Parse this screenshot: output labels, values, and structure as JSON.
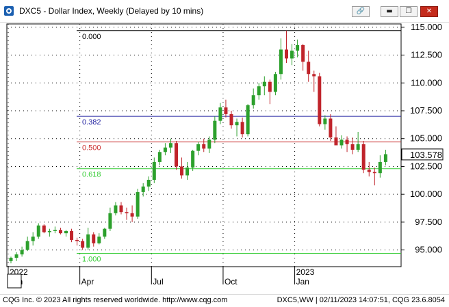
{
  "window": {
    "title": "DXC5 - Dollar Index, Weekly (Delayed by 10 mins)",
    "buttons": {
      "link": "🔗",
      "minimize": "▬",
      "restore": "❐",
      "close": "✕"
    }
  },
  "status_bar": {
    "left": "CQG Inc. © 2023 All rights reserved worldwide. http://www.cqg.com",
    "right": "DXC5,WW | 02/11/2023 14:07:51, CQG 23.6.8054"
  },
  "last_price": "103.578",
  "colors": {
    "up": "#2ca02c",
    "down": "#c0242b",
    "fib_0": "#000000",
    "fib_382": "#2020a0",
    "fib_500": "#cc3333",
    "fib_618": "#33cc33",
    "fib_100": "#33cc33",
    "price_tag_bg": "#ffffff"
  },
  "chart_data": {
    "type": "candlestick",
    "y_axis": {
      "min": 93.5,
      "max": 115.3,
      "ticks": [
        "115.000",
        "112.500",
        "110.000",
        "107.500",
        "105.000",
        "102.500",
        "100.000",
        "97.500",
        "95.000"
      ]
    },
    "x_axis_labels": [
      {
        "label": "2022",
        "week": 0,
        "sub": "Jan"
      },
      {
        "label": "Apr",
        "week": 13
      },
      {
        "label": "Jul",
        "week": 26
      },
      {
        "label": "Oct",
        "week": 39
      },
      {
        "label": "2023",
        "week": 52,
        "sub": "Jan"
      }
    ],
    "fibonacci": [
      {
        "label": "0.000",
        "value": 114.7,
        "start_week": 0
      },
      {
        "label": "0.382",
        "value": 107.0,
        "start_week": 0
      },
      {
        "label": "0.500",
        "value": 104.7,
        "start_week": 0
      },
      {
        "label": "0.618",
        "value": 102.3,
        "start_week": 0
      },
      {
        "label": "1.000",
        "value": 94.7,
        "start_week": 0
      }
    ],
    "candles": [
      [
        94.0,
        94.4,
        93.8,
        94.3
      ],
      [
        94.3,
        94.8,
        94.0,
        94.6
      ],
      [
        94.6,
        95.3,
        94.4,
        95.0
      ],
      [
        95.0,
        96.2,
        94.9,
        95.8
      ],
      [
        95.8,
        96.6,
        95.4,
        96.2
      ],
      [
        96.2,
        97.4,
        96.0,
        97.2
      ],
      [
        97.2,
        97.3,
        96.5,
        96.6
      ],
      [
        96.6,
        96.9,
        96.2,
        96.7
      ],
      [
        96.7,
        97.1,
        96.5,
        96.8
      ],
      [
        96.8,
        97.0,
        96.4,
        96.5
      ],
      [
        96.5,
        96.8,
        96.2,
        96.7
      ],
      [
        96.7,
        96.9,
        95.7,
        95.9
      ],
      [
        95.9,
        96.1,
        95.4,
        95.8
      ],
      [
        95.8,
        96.0,
        95.0,
        95.2
      ],
      [
        95.2,
        97.0,
        95.0,
        96.4
      ],
      [
        96.4,
        96.6,
        95.3,
        95.6
      ],
      [
        95.6,
        96.5,
        95.5,
        96.2
      ],
      [
        96.2,
        97.0,
        96.0,
        96.9
      ],
      [
        96.9,
        98.8,
        96.7,
        98.3
      ],
      [
        98.3,
        99.3,
        98.1,
        99.0
      ],
      [
        99.0,
        99.3,
        98.2,
        98.4
      ],
      [
        98.4,
        98.8,
        97.7,
        98.3
      ],
      [
        98.3,
        99.0,
        97.5,
        98.0
      ],
      [
        98.0,
        100.5,
        97.8,
        100.2
      ],
      [
        100.2,
        101.0,
        99.8,
        100.7
      ],
      [
        100.7,
        101.6,
        100.3,
        101.3
      ],
      [
        101.3,
        103.3,
        101.0,
        102.9
      ],
      [
        102.9,
        104.0,
        102.6,
        103.8
      ],
      [
        103.8,
        104.6,
        103.5,
        104.2
      ],
      [
        104.2,
        105.0,
        103.7,
        104.6
      ],
      [
        104.6,
        104.8,
        102.2,
        102.5
      ],
      [
        102.5,
        103.3,
        101.4,
        101.7
      ],
      [
        101.7,
        102.9,
        101.3,
        102.4
      ],
      [
        102.4,
        104.0,
        102.1,
        103.9
      ],
      [
        103.9,
        104.7,
        103.5,
        104.5
      ],
      [
        104.5,
        105.0,
        103.8,
        104.1
      ],
      [
        104.1,
        105.2,
        103.7,
        104.9
      ],
      [
        104.9,
        107.0,
        104.6,
        106.6
      ],
      [
        106.6,
        108.2,
        106.3,
        107.8
      ],
      [
        107.8,
        108.5,
        106.9,
        107.2
      ],
      [
        107.2,
        107.5,
        105.9,
        106.2
      ],
      [
        106.2,
        106.8,
        105.2,
        106.5
      ],
      [
        106.5,
        106.9,
        105.1,
        105.4
      ],
      [
        105.4,
        108.1,
        105.2,
        108.0
      ],
      [
        108.0,
        109.5,
        107.7,
        108.9
      ],
      [
        108.9,
        110.0,
        108.5,
        109.7
      ],
      [
        109.7,
        110.6,
        108.9,
        110.1
      ],
      [
        110.1,
        110.3,
        108.1,
        109.2
      ],
      [
        109.2,
        111.0,
        108.9,
        110.8
      ],
      [
        110.8,
        114.0,
        110.3,
        113.0
      ],
      [
        113.0,
        114.7,
        111.8,
        112.2
      ],
      [
        112.2,
        113.5,
        111.6,
        112.9
      ],
      [
        112.9,
        113.9,
        112.3,
        113.4
      ],
      [
        113.4,
        113.5,
        111.1,
        111.9
      ],
      [
        111.9,
        112.9,
        110.1,
        110.8
      ],
      [
        110.8,
        111.1,
        109.2,
        110.6
      ],
      [
        110.6,
        110.9,
        106.1,
        106.3
      ],
      [
        106.3,
        107.1,
        105.8,
        106.8
      ],
      [
        106.8,
        107.2,
        104.8,
        105.1
      ],
      [
        105.1,
        106.1,
        104.4,
        104.4
      ],
      [
        104.4,
        105.3,
        104.1,
        104.9
      ],
      [
        104.9,
        105.2,
        103.8,
        104.5
      ],
      [
        104.5,
        105.1,
        103.6,
        104.0
      ],
      [
        104.0,
        105.6,
        103.8,
        104.5
      ],
      [
        104.5,
        104.8,
        101.9,
        102.2
      ],
      [
        102.2,
        102.9,
        101.6,
        102.0
      ],
      [
        102.0,
        102.4,
        100.8,
        101.9
      ],
      [
        101.9,
        103.5,
        101.5,
        102.9
      ],
      [
        102.9,
        104.0,
        102.6,
        103.6
      ]
    ]
  }
}
